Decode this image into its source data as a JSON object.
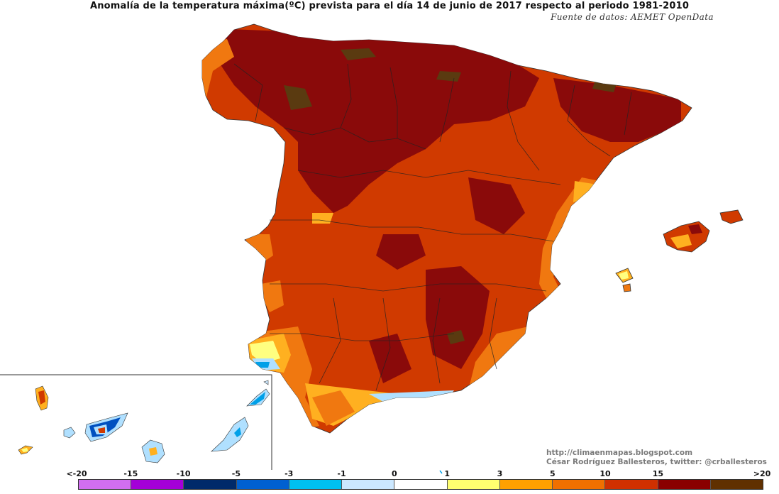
{
  "title": "Anomalía de la temperatura máxima(ºC) prevista para el día 14 de junio de 2017 respecto al periodo 1981-2010",
  "source": "Fuente de datos: AEMET OpenData",
  "credits": {
    "blog": "http://climaenmapas.blogspot.com",
    "author": "César Rodríguez Ballesteros, twitter: @crballesteros"
  },
  "legend": {
    "labels": [
      "<-20",
      "-15",
      "-10",
      "-5",
      "-3",
      "-1",
      "0",
      "1",
      "3",
      "5",
      "10",
      "15",
      ">20"
    ],
    "colors": [
      "#d26ef0",
      "#a400d8",
      "#002a6a",
      "#0060d0",
      "#00c0f0",
      "#cce8ff",
      "#ffffff",
      "#ffff70",
      "#ffa000",
      "#f07000",
      "#d03000",
      "#8a0000",
      "#603000"
    ]
  },
  "map_colors": {
    "strong": "#d03a00",
    "very_strong": "#8a0a0a",
    "extreme": "#5a3a10",
    "moderate": "#f07810",
    "mild": "#ffb020",
    "slight": "#ffff80",
    "neutral": "#ffffff",
    "cool": "#b0e0ff",
    "cold": "#00a0e8",
    "colder": "#0050c0",
    "coldest": "#002060"
  }
}
